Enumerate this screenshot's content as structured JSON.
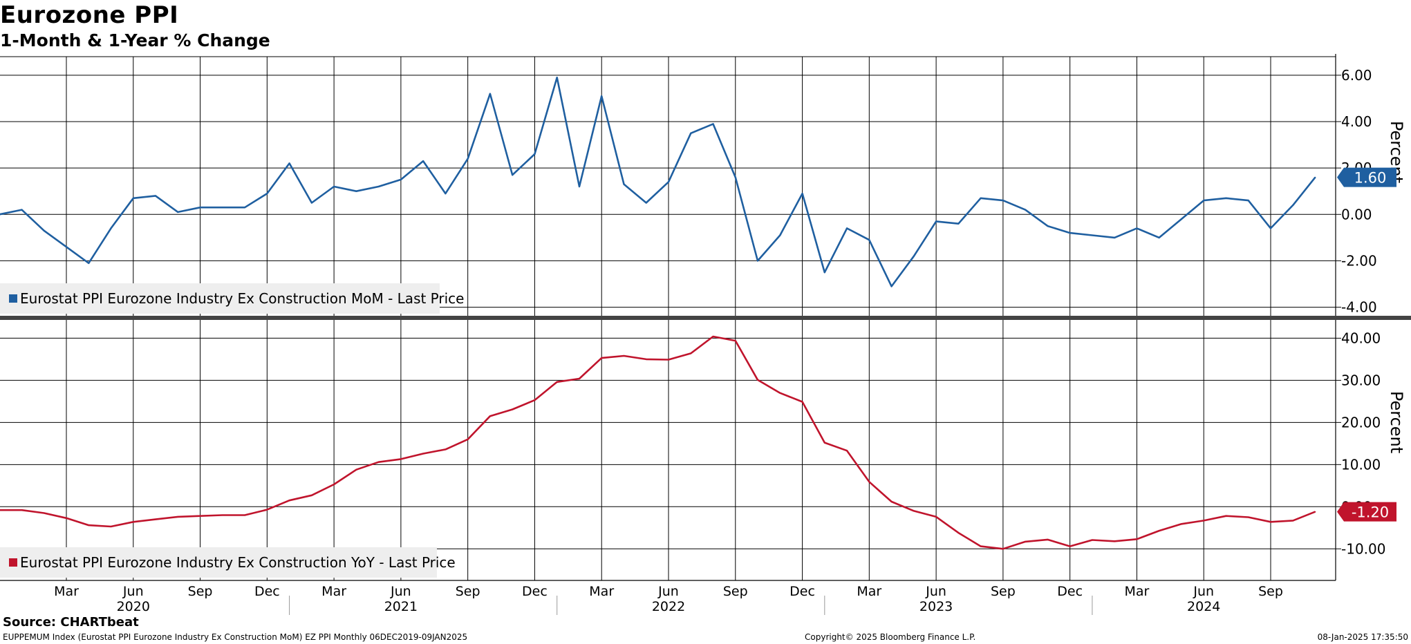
{
  "title": "Eurozone PPI",
  "subtitle": "1-Month & 1-Year % Change",
  "source": "Source: CHARTbeat",
  "footer": {
    "left": "EUPPEMUM Index (Eurostat PPI Eurozone Industry Ex Construction MoM) EZ PPI  Monthly 06DEC2019-09JAN2025",
    "middle": "Copyright© 2025 Bloomberg Finance L.P.",
    "right": "08-Jan-2025 17:35:50"
  },
  "colors": {
    "mom": "#1f5fa0",
    "yoy": "#c0142c",
    "grid": "#000000",
    "legend_bg": "#eeeeee"
  },
  "chart_data": [
    {
      "type": "line",
      "ylabel": "Percent",
      "ylim": [
        -4.4,
        6.8
      ],
      "yticks": [
        6,
        4,
        2,
        0,
        -2,
        -4
      ],
      "ytick_labels": [
        "6.00",
        "4.00",
        "2.00",
        "0.00",
        "-2.00",
        "-4.00"
      ],
      "last_value_label": "1.60",
      "series": [
        {
          "name": "Eurostat PPI Eurozone Industry Ex Construction MoM - Last Price",
          "x": [
            "2019-12",
            "2020-01",
            "2020-02",
            "2020-03",
            "2020-04",
            "2020-05",
            "2020-06",
            "2020-07",
            "2020-08",
            "2020-09",
            "2020-10",
            "2020-11",
            "2020-12",
            "2021-01",
            "2021-02",
            "2021-03",
            "2021-04",
            "2021-05",
            "2021-06",
            "2021-07",
            "2021-08",
            "2021-09",
            "2021-10",
            "2021-11",
            "2021-12",
            "2022-01",
            "2022-02",
            "2022-03",
            "2022-04",
            "2022-05",
            "2022-06",
            "2022-07",
            "2022-08",
            "2022-09",
            "2022-10",
            "2022-11",
            "2022-12",
            "2023-01",
            "2023-02",
            "2023-03",
            "2023-04",
            "2023-05",
            "2023-06",
            "2023-07",
            "2023-08",
            "2023-09",
            "2023-10",
            "2023-11",
            "2023-12",
            "2024-01",
            "2024-02",
            "2024-03",
            "2024-04",
            "2024-05",
            "2024-06",
            "2024-07",
            "2024-08",
            "2024-09",
            "2024-10",
            "2024-11"
          ],
          "values": [
            0.0,
            0.2,
            -0.7,
            -1.4,
            -2.1,
            -0.6,
            0.7,
            0.8,
            0.1,
            0.3,
            0.3,
            0.3,
            0.9,
            2.2,
            0.5,
            1.2,
            1.0,
            1.2,
            1.5,
            2.3,
            0.9,
            2.4,
            5.2,
            1.7,
            2.6,
            5.9,
            1.2,
            5.1,
            1.3,
            0.5,
            1.4,
            3.5,
            3.9,
            1.6,
            -2.0,
            -0.9,
            0.9,
            -2.5,
            -0.6,
            -1.1,
            -3.1,
            -1.8,
            -0.3,
            -0.4,
            0.7,
            0.6,
            0.2,
            -0.5,
            -0.8,
            -0.9,
            -1.0,
            -0.6,
            -1.0,
            -0.2,
            0.6,
            0.7,
            0.6,
            -0.6,
            0.4,
            1.6
          ]
        }
      ]
    },
    {
      "type": "line",
      "ylabel": "Percent",
      "ylim": [
        -17.5,
        44.5
      ],
      "yticks": [
        40,
        30,
        20,
        10,
        0,
        -10
      ],
      "ytick_labels": [
        "40.00",
        "30.00",
        "20.00",
        "10.00",
        "0.00",
        "-10.00"
      ],
      "last_value_label": "-1.20",
      "series": [
        {
          "name": "Eurostat PPI Eurozone Industry Ex Construction YoY - Last Price",
          "x": [
            "2019-12",
            "2020-01",
            "2020-02",
            "2020-03",
            "2020-04",
            "2020-05",
            "2020-06",
            "2020-07",
            "2020-08",
            "2020-09",
            "2020-10",
            "2020-11",
            "2020-12",
            "2021-01",
            "2021-02",
            "2021-03",
            "2021-04",
            "2021-05",
            "2021-06",
            "2021-07",
            "2021-08",
            "2021-09",
            "2021-10",
            "2021-11",
            "2021-12",
            "2022-01",
            "2022-02",
            "2022-03",
            "2022-04",
            "2022-05",
            "2022-06",
            "2022-07",
            "2022-08",
            "2022-09",
            "2022-10",
            "2022-11",
            "2022-12",
            "2023-01",
            "2023-02",
            "2023-03",
            "2023-04",
            "2023-05",
            "2023-06",
            "2023-07",
            "2023-08",
            "2023-09",
            "2023-10",
            "2023-11",
            "2023-12",
            "2024-01",
            "2024-02",
            "2024-03",
            "2024-04",
            "2024-05",
            "2024-06",
            "2024-07",
            "2024-08",
            "2024-09",
            "2024-10",
            "2024-11"
          ],
          "values": [
            -0.8,
            -0.8,
            -1.5,
            -2.7,
            -4.4,
            -4.7,
            -3.6,
            -3.0,
            -2.4,
            -2.2,
            -2.0,
            -2.0,
            -0.7,
            1.5,
            2.7,
            5.3,
            8.8,
            10.6,
            11.3,
            12.6,
            13.6,
            16.0,
            21.5,
            23.1,
            25.3,
            29.6,
            30.4,
            35.3,
            35.8,
            35.0,
            34.9,
            36.4,
            40.4,
            39.4,
            30.1,
            27.0,
            24.9,
            15.2,
            13.3,
            5.9,
            1.2,
            -1.0,
            -2.4,
            -6.2,
            -9.4,
            -10.0,
            -8.3,
            -7.8,
            -9.4,
            -7.9,
            -8.2,
            -7.7,
            -5.7,
            -4.1,
            -3.3,
            -2.2,
            -2.5,
            -3.6,
            -3.3,
            -1.2
          ]
        }
      ]
    }
  ],
  "x_axis": {
    "month_labels": [
      {
        "date": "2020-03",
        "label": "Mar"
      },
      {
        "date": "2020-06",
        "label": "Jun"
      },
      {
        "date": "2020-09",
        "label": "Sep"
      },
      {
        "date": "2020-12",
        "label": "Dec"
      },
      {
        "date": "2021-03",
        "label": "Mar"
      },
      {
        "date": "2021-06",
        "label": "Jun"
      },
      {
        "date": "2021-09",
        "label": "Sep"
      },
      {
        "date": "2021-12",
        "label": "Dec"
      },
      {
        "date": "2022-03",
        "label": "Mar"
      },
      {
        "date": "2022-06",
        "label": "Jun"
      },
      {
        "date": "2022-09",
        "label": "Sep"
      },
      {
        "date": "2022-12",
        "label": "Dec"
      },
      {
        "date": "2023-03",
        "label": "Mar"
      },
      {
        "date": "2023-06",
        "label": "Jun"
      },
      {
        "date": "2023-09",
        "label": "Sep"
      },
      {
        "date": "2023-12",
        "label": "Dec"
      },
      {
        "date": "2024-03",
        "label": "Mar"
      },
      {
        "date": "2024-06",
        "label": "Jun"
      },
      {
        "date": "2024-09",
        "label": "Sep"
      }
    ],
    "year_labels": [
      {
        "date": "2020-06",
        "label": "2020"
      },
      {
        "date": "2021-06",
        "label": "2021"
      },
      {
        "date": "2022-06",
        "label": "2022"
      },
      {
        "date": "2023-06",
        "label": "2023"
      },
      {
        "date": "2024-06",
        "label": "2024"
      }
    ],
    "year_separators": [
      "2021-01",
      "2022-01",
      "2023-01",
      "2024-01"
    ]
  }
}
